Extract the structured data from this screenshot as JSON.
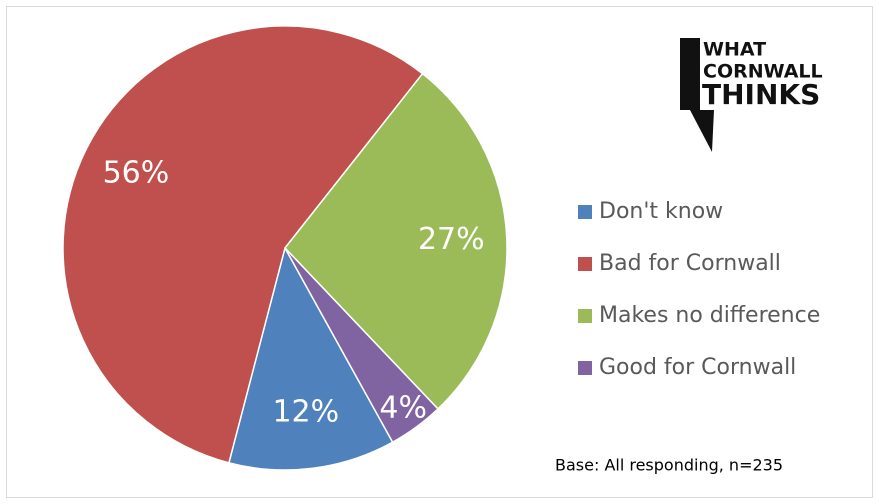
{
  "chart_data": {
    "type": "pie",
    "categories": [
      "Don't know",
      "Bad for Cornwall",
      "Makes no difference",
      "Good for Cornwall"
    ],
    "values": [
      12,
      56,
      27,
      4
    ],
    "value_labels": [
      "12%",
      "56%",
      "27%",
      "4%"
    ],
    "colors": [
      "#4f81bd",
      "#c0504d",
      "#9bbb59",
      "#8064a2"
    ],
    "legend": "right",
    "note": "Base: All responding, n=235"
  },
  "logo": {
    "lines": [
      "WHAT",
      "CORNWALL",
      "THINKS"
    ]
  }
}
